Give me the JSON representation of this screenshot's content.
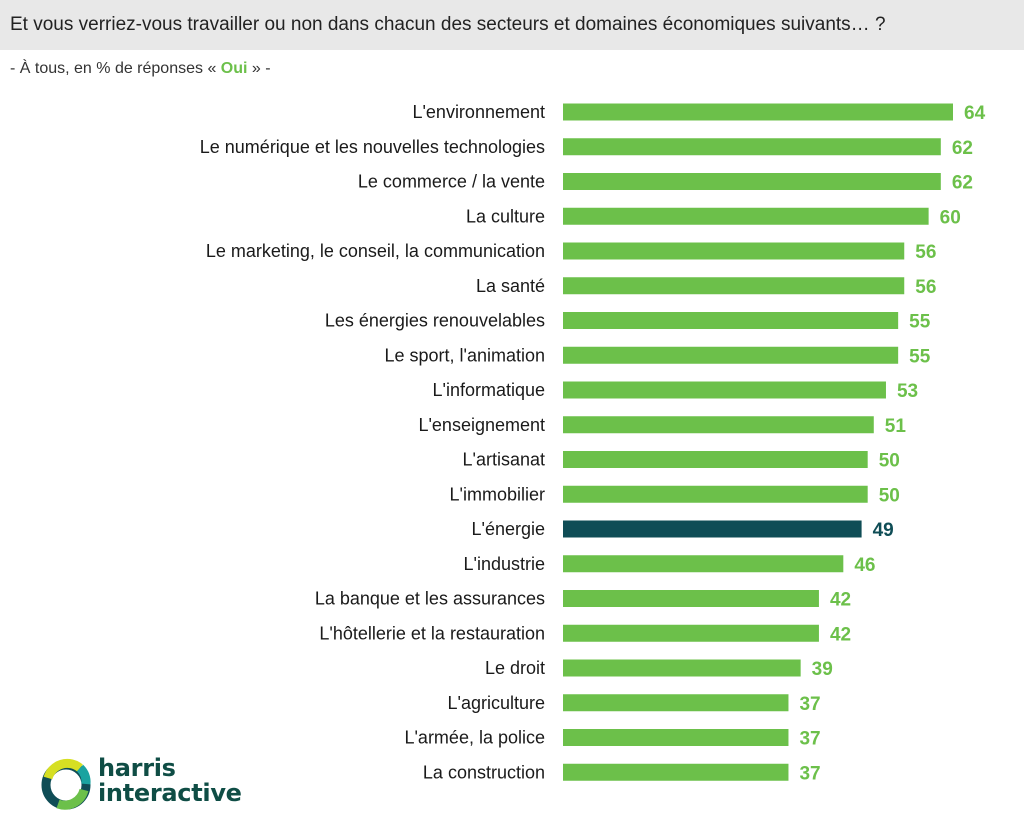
{
  "header": {
    "title": "Et vous verriez-vous travailler ou non dans chacun des secteurs et domaines économiques suivants… ?",
    "subtitle_prefix": "- À tous, en % de réponses « ",
    "subtitle_highlight": "Oui",
    "subtitle_suffix": " » -"
  },
  "colors": {
    "bar": "#6cc04a",
    "bar_highlight": "#0f4d56",
    "value_text": "#6cc04a",
    "value_text_highlight": "#0f4d56"
  },
  "chart_data": {
    "type": "bar",
    "orientation": "horizontal",
    "title": "Et vous verriez-vous travailler ou non dans chacun des secteurs et domaines économiques suivants… ?",
    "xlabel": "",
    "ylabel": "",
    "xlim": [
      0,
      64
    ],
    "categories": [
      "L'environnement",
      "Le numérique et les nouvelles technologies",
      "Le commerce / la vente",
      "La culture",
      "Le marketing, le conseil, la communication",
      "La santé",
      "Les énergies renouvelables",
      "Le sport, l'animation",
      "L'informatique",
      "L'enseignement",
      "L'artisanat",
      "L'immobilier",
      "L'énergie",
      "L'industrie",
      "La banque et les assurances",
      "L'hôtellerie et la restauration",
      "Le droit",
      "L'agriculture",
      "L'armée, la police",
      "La construction"
    ],
    "values": [
      64,
      62,
      62,
      60,
      56,
      56,
      55,
      55,
      53,
      51,
      50,
      50,
      49,
      46,
      42,
      42,
      39,
      37,
      37,
      37
    ],
    "highlighted_category": "L'énergie"
  },
  "logo": {
    "line1": "harris",
    "line2": "interactive"
  }
}
